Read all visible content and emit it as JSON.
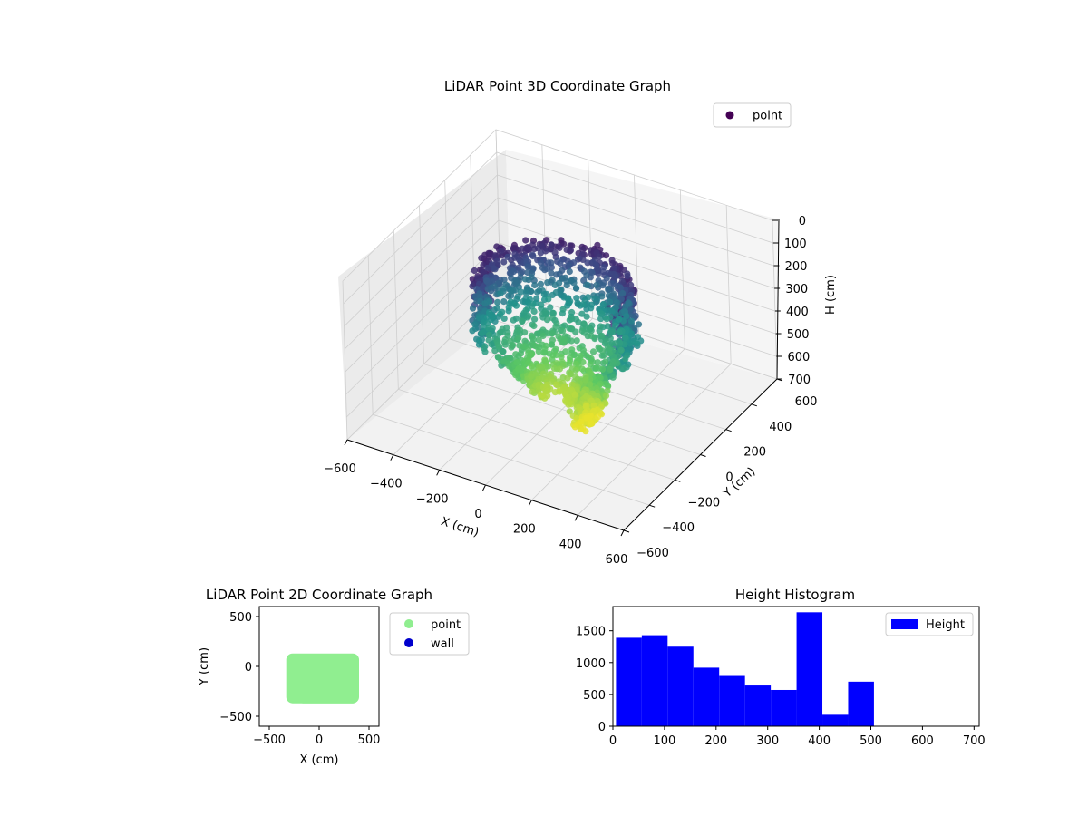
{
  "chart_data": [
    {
      "type": "scatter3d",
      "title": "LiDAR Point 3D Coordinate Graph",
      "xlabel": "X (cm)",
      "ylabel": "Y (cm)",
      "zlabel": "H (cm)",
      "xlim": [
        -600,
        600
      ],
      "ylim": [
        -600,
        600
      ],
      "zlim": [
        700,
        0
      ],
      "xticks": [
        -600,
        -400,
        -200,
        0,
        200,
        400,
        600
      ],
      "yticks": [
        -600,
        -400,
        -200,
        0,
        200,
        400,
        600
      ],
      "zticks": [
        0,
        100,
        200,
        300,
        400,
        500,
        600,
        700
      ],
      "colormap": "viridis",
      "grid": true,
      "legend": {
        "position": "top-right",
        "entries": [
          {
            "name": "point",
            "color": "#440154"
          }
        ]
      }
    },
    {
      "type": "scatter",
      "title": "LiDAR Point 2D Coordinate Graph",
      "xlabel": "X (cm)",
      "ylabel": "Y (cm)",
      "xlim": [
        -600,
        600
      ],
      "ylim": [
        -600,
        600
      ],
      "xticks": [
        -500,
        0,
        500
      ],
      "yticks": [
        -500,
        0,
        500
      ],
      "region": {
        "x": [
          -330,
          400
        ],
        "y": [
          -370,
          130
        ]
      },
      "legend": {
        "position": "outside-right",
        "entries": [
          {
            "name": "point",
            "color": "#90ee90"
          },
          {
            "name": "wall",
            "color": "#0000cd"
          }
        ]
      }
    },
    {
      "type": "bar",
      "title": "Height Histogram",
      "legend": {
        "position": "top-right",
        "entries": [
          {
            "name": "Height",
            "color": "#0000ff"
          }
        ]
      },
      "bins": [
        {
          "x0": 6,
          "x1": 56,
          "count": 1390
        },
        {
          "x0": 56,
          "x1": 106,
          "count": 1430
        },
        {
          "x0": 106,
          "x1": 156,
          "count": 1250
        },
        {
          "x0": 156,
          "x1": 206,
          "count": 920
        },
        {
          "x0": 206,
          "x1": 256,
          "count": 790
        },
        {
          "x0": 256,
          "x1": 306,
          "count": 640
        },
        {
          "x0": 306,
          "x1": 356,
          "count": 570
        },
        {
          "x0": 356,
          "x1": 406,
          "count": 1790
        },
        {
          "x0": 406,
          "x1": 456,
          "count": 180
        },
        {
          "x0": 456,
          "x1": 506,
          "count": 700
        }
      ],
      "xlim": [
        0,
        710
      ],
      "ylim": [
        0,
        1880
      ],
      "xticks": [
        0,
        100,
        200,
        300,
        400,
        500,
        600,
        700
      ],
      "yticks": [
        0,
        500,
        1000,
        1500
      ]
    }
  ]
}
